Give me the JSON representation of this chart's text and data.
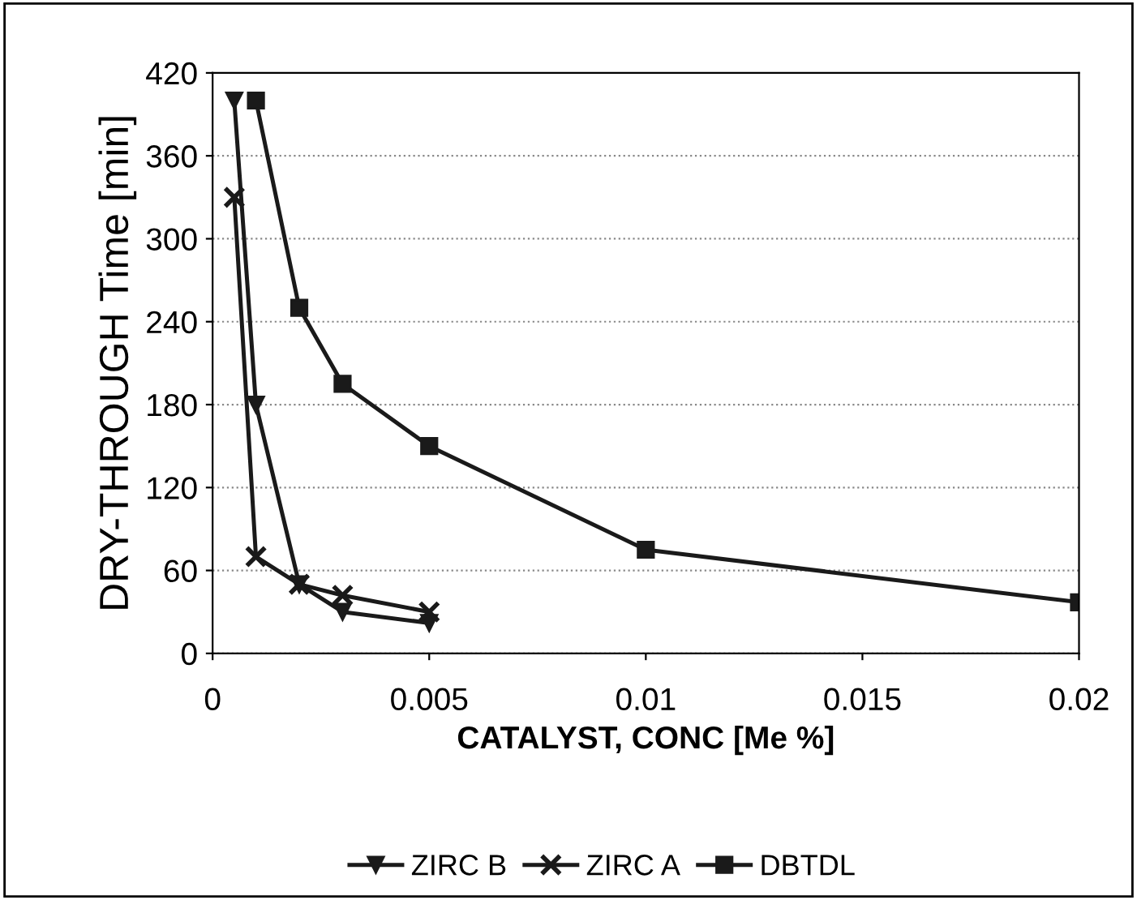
{
  "chart_data": {
    "type": "line",
    "xlabel": "CATALYST, CONC [Me %]",
    "ylabel": "DRY-THROUGH Time [min]",
    "xlim": [
      0,
      0.02
    ],
    "xticks": [
      0,
      0.005,
      0.01,
      0.015,
      0.02
    ],
    "ylim": [
      0,
      420
    ],
    "yticks": [
      0,
      60,
      120,
      180,
      240,
      300,
      360,
      420
    ],
    "grid": "y",
    "legend": "bottom",
    "line_style": "solid",
    "series": [
      {
        "name": "ZIRC B",
        "color": "#1a1a1a",
        "marker": "triangle",
        "x": [
          0.0005,
          0.001,
          0.002,
          0.003,
          0.005
        ],
        "values": [
          400,
          180,
          50,
          30,
          22
        ]
      },
      {
        "name": "ZIRC A",
        "color": "#1a1a1a",
        "marker": "cross",
        "x": [
          0.0005,
          0.001,
          0.002,
          0.003,
          0.005
        ],
        "values": [
          330,
          70,
          50,
          42,
          30
        ]
      },
      {
        "name": "DBTDL",
        "color": "#1a1a1a",
        "marker": "square",
        "x": [
          0.001,
          0.002,
          0.003,
          0.005,
          0.01,
          0.02
        ],
        "values": [
          400,
          250,
          195,
          150,
          75,
          37
        ]
      }
    ]
  }
}
